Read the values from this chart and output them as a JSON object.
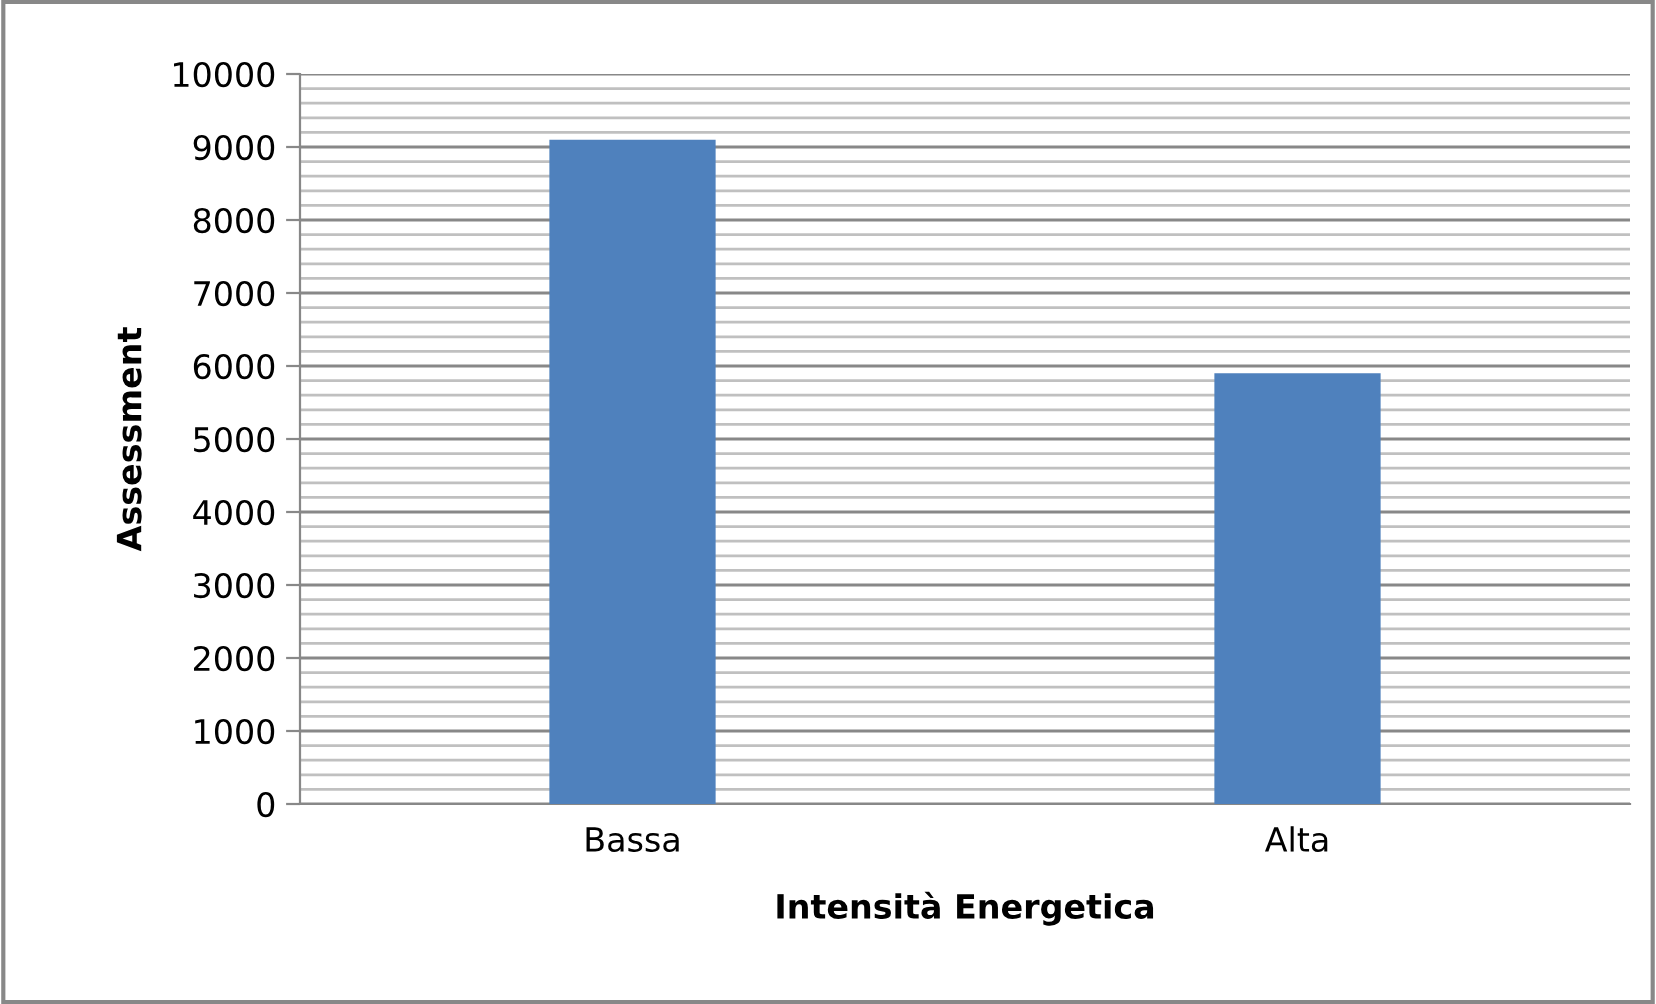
{
  "chart_data": {
    "type": "bar",
    "xlabel": "Intensità Energetica",
    "ylabel": "Assessment",
    "categories": [
      "Bassa",
      "Alta"
    ],
    "values": [
      9100,
      5900
    ],
    "color": "#4f81bd",
    "ylim": [
      0,
      10000
    ],
    "yticks": [
      0,
      {
        "value": 200,
        "label": null
      },
      {
        "value": 400,
        "label": null
      },
      {
        "value": 600,
        "label": null
      },
      {
        "value": 800,
        "label": null
      },
      1000,
      {
        "value": 1200,
        "label": null
      },
      {
        "value": 1400,
        "label": null
      },
      {
        "value": 1600,
        "label": null
      },
      {
        "value": 1800,
        "label": null
      },
      2000,
      {
        "value": 2200,
        "label": null
      },
      {
        "value": 2400,
        "label": null
      },
      {
        "value": 2600,
        "label": null
      },
      {
        "value": 2800,
        "label": null
      },
      3000,
      {
        "value": 3200,
        "label": null
      },
      {
        "value": 3400,
        "label": null
      },
      {
        "value": 3600,
        "label": null
      },
      {
        "value": 3800,
        "label": null
      },
      4000,
      {
        "value": 4200,
        "label": null
      },
      {
        "value": 4400,
        "label": null
      },
      {
        "value": 4600,
        "label": null
      },
      {
        "value": 4800,
        "label": null
      },
      5000,
      {
        "value": 5200,
        "label": null
      },
      {
        "value": 5400,
        "label": null
      },
      {
        "value": 5600,
        "label": null
      },
      {
        "value": 5800,
        "label": null
      },
      6000,
      {
        "value": 6200,
        "label": null
      },
      {
        "value": 6400,
        "label": null
      },
      {
        "value": 6600,
        "label": null
      },
      {
        "value": 6800,
        "label": null
      },
      7000,
      {
        "value": 7200,
        "label": null
      },
      {
        "value": 7400,
        "label": null
      },
      {
        "value": 7600,
        "label": null
      },
      {
        "value": 7800,
        "label": null
      },
      8000,
      {
        "value": 8200,
        "label": null
      },
      {
        "value": 8400,
        "label": null
      },
      {
        "value": 8600,
        "label": null
      },
      {
        "value": 8800,
        "label": null
      },
      9000,
      {
        "value": 9200,
        "label": null
      },
      {
        "value": 9400,
        "label": null
      },
      {
        "value": 9600,
        "label": null
      },
      {
        "value": 9800,
        "label": null
      },
      10000
    ],
    "grid": "y"
  }
}
